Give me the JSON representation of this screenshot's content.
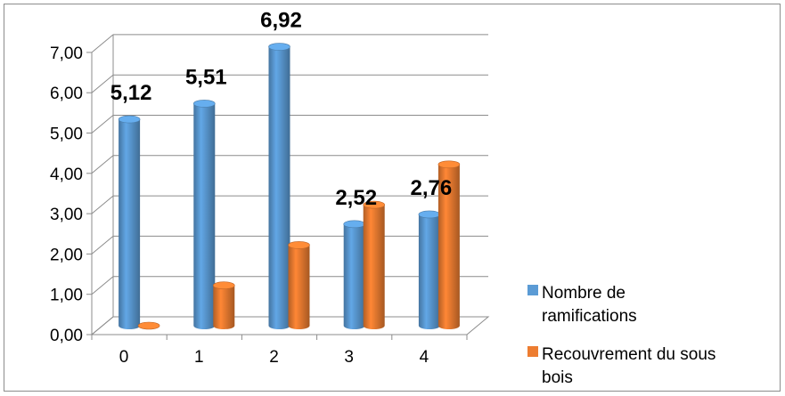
{
  "chart_data": {
    "type": "bar",
    "title": "",
    "xlabel": "",
    "ylabel": "",
    "categories": [
      "0",
      "1",
      "2",
      "3",
      "4"
    ],
    "series": [
      {
        "name": "Nombre de ramifications",
        "values": [
          5.12,
          5.51,
          6.92,
          2.52,
          2.76
        ],
        "color": "#5b9bd5"
      },
      {
        "name": "Recouvrement du sous bois",
        "values": [
          0.0,
          1.0,
          2.0,
          3.0,
          4.0
        ],
        "color": "#ed7d31"
      }
    ],
    "data_labels": [
      "5,12",
      "5,51",
      "6,92",
      "2,52",
      "2,76"
    ],
    "y_ticks": [
      "0,00",
      "1,00",
      "2,00",
      "3,00",
      "4,00",
      "5,00",
      "6,00",
      "7,00"
    ],
    "ylim": [
      0,
      7
    ],
    "grid": true,
    "legend_position": "right",
    "legend_lines": [
      [
        "Nombre de",
        "ramifications"
      ],
      [
        "Recouvrement du sous",
        "bois"
      ]
    ]
  }
}
